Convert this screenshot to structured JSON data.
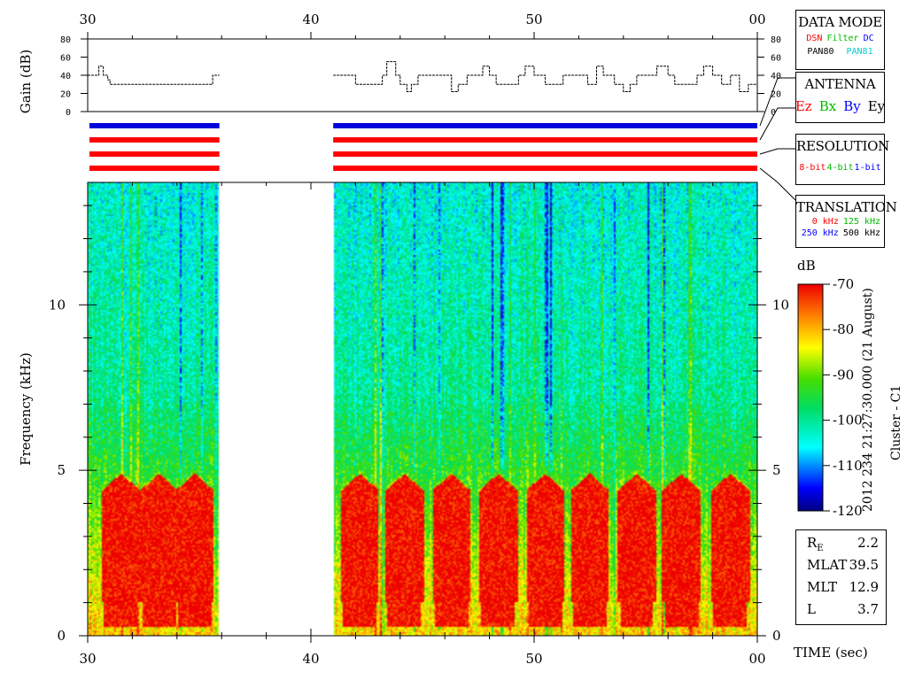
{
  "chart_data": {
    "type": "heatmap",
    "title": "",
    "x_axis": {
      "label": "TIME (sec)",
      "ticks": [
        "30",
        "40",
        "50",
        "00"
      ],
      "range_sec": [
        30,
        60
      ]
    },
    "y_axis": {
      "label": "Frequency (kHz)",
      "ticks": [
        "0",
        "5",
        "10"
      ],
      "range": [
        0,
        13.7
      ],
      "units": "kHz"
    },
    "gain_panel": {
      "label": "Gain (dB)",
      "ticks": [
        "0",
        "20",
        "40",
        "60",
        "80"
      ],
      "range": [
        0,
        80
      ]
    },
    "colorbar": {
      "label": "dB",
      "ticks": [
        "-70",
        "-80",
        "-90",
        "-100",
        "-110",
        "-120"
      ],
      "range": [
        -120,
        -70
      ]
    },
    "data_gap_sec": [
      35.9,
      41.0
    ],
    "gain_trace": {
      "t": [
        30.0,
        30.2,
        30.5,
        30.7,
        30.9,
        31.0,
        35.5,
        35.6,
        35.9
      ],
      "db": [
        40,
        40,
        50,
        40,
        35,
        30,
        30,
        40,
        40
      ]
    },
    "gain_trace_2": {
      "t": [
        41.0,
        41.5,
        42.0,
        42.8,
        43.2,
        43.4,
        43.8,
        44.0,
        44.3,
        44.5,
        44.8,
        45.2,
        46.0,
        46.3,
        46.6,
        47.0,
        47.4,
        47.7,
        48.0,
        48.3,
        49.0,
        49.3,
        49.6,
        50.0,
        50.5,
        51.0,
        51.3,
        52.0,
        52.4,
        52.8,
        53.1,
        53.6,
        54.0,
        54.3,
        54.6,
        55.0,
        55.5,
        56.0,
        56.3,
        56.8,
        57.3,
        57.6,
        58.0,
        58.4,
        58.8,
        59.2,
        59.6,
        60.0
      ],
      "db": [
        40,
        40,
        30,
        30,
        40,
        55,
        40,
        30,
        22,
        30,
        40,
        40,
        40,
        22,
        30,
        40,
        40,
        50,
        40,
        30,
        30,
        40,
        50,
        40,
        30,
        30,
        40,
        40,
        30,
        50,
        40,
        30,
        22,
        30,
        40,
        40,
        50,
        40,
        30,
        30,
        40,
        50,
        40,
        30,
        40,
        22,
        30,
        40
      ]
    },
    "antenna_bars": [
      {
        "antenna": "Ey",
        "color": "#0000dd"
      },
      {
        "antenna": "Ez",
        "color": "#ff0000"
      },
      {
        "antenna": "Ez",
        "color": "#ff0000"
      },
      {
        "antenna": "Ez",
        "color": "#ff0000"
      }
    ],
    "band_cycles_sec": [
      31.5,
      33.2,
      34.8,
      42.2,
      44.2,
      46.3,
      48.4,
      50.5,
      52.5,
      54.6,
      56.6,
      58.8
    ],
    "notes": "Intense emission (about -70 dB) between ~0.3 and 5 kHz, pulsed every ~2 s; background ~-95 to -105 dB above 7 kHz."
  },
  "colors": {
    "red": "#ff0000",
    "green": "#00cc00",
    "blue": "#0000ff",
    "cyan": "#00dddd",
    "black": "#000000"
  },
  "side": {
    "data_mode": {
      "title": "DATA MODE",
      "items": [
        {
          "text": "DSN",
          "color": "#ff0000"
        },
        {
          "text": "Filter",
          "color": "#00bb00"
        },
        {
          "text": "DC",
          "color": "#0000ff"
        }
      ],
      "items2": [
        {
          "text": "PAN80",
          "color": "#000000"
        },
        {
          "text": "PAN81",
          "color": "#00cccc"
        }
      ]
    },
    "antenna": {
      "title": "ANTENNA",
      "items": [
        {
          "text": "Ez",
          "color": "#ff0000"
        },
        {
          "text": "Bx",
          "color": "#00bb00"
        },
        {
          "text": "By",
          "color": "#0000ff"
        },
        {
          "text": "Ey",
          "color": "#000000"
        }
      ]
    },
    "resolution": {
      "title": "RESOLUTION",
      "items": [
        {
          "text": "8-bit",
          "color": "#ff0000"
        },
        {
          "text": "4-bit",
          "color": "#00bb00"
        },
        {
          "text": "1-bit",
          "color": "#0000ff"
        }
      ]
    },
    "translation": {
      "title": "TRANSLATION",
      "items": [
        {
          "text": "0 kHz",
          "color": "#ff0000"
        },
        {
          "text": "125 kHz",
          "color": "#00bb00"
        }
      ],
      "items2": [
        {
          "text": "250 kHz",
          "color": "#0000ff"
        },
        {
          "text": "500 kHz",
          "color": "#000000"
        }
      ]
    },
    "colorbar_side_text": "2012 234 21:27:30.000 (21 August)",
    "spacecraft": "Cluster - C1",
    "orbit": [
      {
        "label": "RE",
        "value": "2.2"
      },
      {
        "label": "MLAT",
        "value": "39.5"
      },
      {
        "label": "MLT",
        "value": "12.9"
      },
      {
        "label": "L",
        "value": "3.7"
      }
    ]
  }
}
